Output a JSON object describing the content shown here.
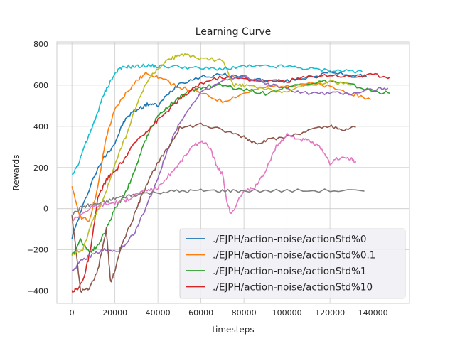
{
  "chart_data": {
    "type": "line",
    "title": "Learning Curve",
    "xlabel": "timesteps",
    "ylabel": "Rewards",
    "xlim": [
      -7000,
      157000
    ],
    "ylim": [
      -460,
      810
    ],
    "xticks": [
      0,
      20000,
      40000,
      60000,
      80000,
      100000,
      120000,
      140000
    ],
    "yticks": [
      -400,
      -200,
      0,
      200,
      400,
      600,
      800
    ],
    "xtick_labels": [
      "0",
      "20000",
      "40000",
      "60000",
      "80000",
      "100000",
      "120000",
      "140000"
    ],
    "ytick_labels": [
      "−400",
      "−200",
      "0",
      "200",
      "400",
      "600",
      "800"
    ],
    "grid": true,
    "legend_position": "lower right",
    "series": [
      {
        "name": "./EJPH/action-noise/actionStd%0",
        "color": "#1f77b4",
        "x": [
          0,
          5000,
          10000,
          15000,
          20000,
          24000,
          28000,
          32000,
          36000,
          40000,
          45000,
          50000,
          60000,
          70000,
          80000,
          90000,
          100000,
          110000,
          120000,
          130000,
          137000
        ],
        "y": [
          -140,
          10,
          150,
          250,
          320,
          420,
          470,
          490,
          510,
          500,
          560,
          610,
          640,
          650,
          640,
          620,
          620,
          640,
          660,
          650,
          640
        ]
      },
      {
        "name": "./EJPH/action-noise/actionStd%0.1",
        "color": "#ff7f0e",
        "x": [
          0,
          4000,
          8000,
          12000,
          16000,
          20000,
          25000,
          30000,
          35000,
          40000,
          50000,
          60000,
          70000,
          80000,
          90000,
          100000,
          110000,
          120000,
          130000,
          139000
        ],
        "y": [
          100,
          -40,
          -60,
          100,
          350,
          480,
          560,
          620,
          660,
          640,
          590,
          560,
          520,
          560,
          590,
          600,
          610,
          590,
          560,
          530
        ]
      },
      {
        "name": "./EJPH/action-noise/actionStd%1",
        "color": "#2ca02c",
        "x": [
          0,
          4000,
          8000,
          12000,
          16000,
          20000,
          24000,
          28000,
          32000,
          36000,
          40000,
          45000,
          50000,
          55000,
          60000,
          70000,
          80000,
          90000,
          100000,
          110000,
          120000,
          130000,
          140000,
          148000
        ],
        "y": [
          -230,
          -150,
          -210,
          -180,
          -100,
          0,
          60,
          150,
          270,
          380,
          450,
          500,
          540,
          570,
          590,
          600,
          580,
          560,
          590,
          610,
          620,
          600,
          570,
          560
        ]
      },
      {
        "name": "./EJPH/action-noise/actionStd%10",
        "color": "#d62728",
        "x": [
          0,
          3000,
          6000,
          9000,
          12000,
          16000,
          20000,
          25000,
          30000,
          35000,
          40000,
          45000,
          50000,
          55000,
          60000,
          70000,
          80000,
          90000,
          100000,
          110000,
          120000,
          130000,
          140000,
          148000
        ],
        "y": [
          -400,
          -390,
          -320,
          -180,
          50,
          140,
          180,
          250,
          330,
          380,
          430,
          480,
          530,
          570,
          610,
          640,
          630,
          620,
          620,
          640,
          650,
          640,
          650,
          640
        ]
      },
      {
        "color": "#9467bd",
        "x": [
          0,
          5000,
          10000,
          15000,
          20000,
          25000,
          30000,
          35000,
          40000,
          45000,
          50000,
          60000,
          70000,
          80000,
          90000,
          100000,
          110000,
          120000,
          130000,
          140000,
          147000
        ],
        "y": [
          -300,
          -250,
          -220,
          -200,
          -210,
          -180,
          -100,
          20,
          150,
          300,
          420,
          560,
          620,
          640,
          610,
          580,
          560,
          560,
          560,
          580,
          585
        ]
      },
      {
        "color": "#8c564b",
        "x": [
          0,
          4000,
          8000,
          12000,
          16000,
          18000,
          20000,
          24000,
          28000,
          32000,
          36000,
          40000,
          45000,
          50000,
          60000,
          70000,
          80000,
          85000,
          90000,
          100000,
          110000,
          120000,
          125000,
          132000
        ],
        "y": [
          -30,
          -400,
          -390,
          -300,
          -100,
          -360,
          -300,
          -150,
          -60,
          50,
          150,
          220,
          300,
          390,
          410,
          380,
          350,
          320,
          330,
          350,
          380,
          400,
          380,
          395
        ]
      },
      {
        "color": "#e377c2",
        "x": [
          0,
          5000,
          10000,
          15000,
          20000,
          25000,
          30000,
          35000,
          40000,
          45000,
          50000,
          55000,
          60000,
          64000,
          68000,
          70000,
          72000,
          74000,
          80000,
          85000,
          90000,
          95000,
          100000,
          105000,
          110000,
          115000,
          120000,
          125000,
          130000,
          132000
        ],
        "y": [
          -60,
          -20,
          10,
          20,
          30,
          40,
          70,
          90,
          100,
          160,
          220,
          290,
          330,
          300,
          190,
          170,
          40,
          -30,
          90,
          100,
          180,
          300,
          360,
          340,
          330,
          300,
          220,
          250,
          240,
          230
        ]
      },
      {
        "color": "#7f7f7f",
        "x": [
          0,
          5000,
          10000,
          15000,
          20000,
          25000,
          30000,
          40000,
          50000,
          60000,
          70000,
          80000,
          100000,
          120000,
          136000
        ],
        "y": [
          -30,
          10,
          20,
          30,
          50,
          60,
          70,
          80,
          85,
          87,
          87,
          87,
          87,
          88,
          85
        ]
      },
      {
        "color": "#bcbd22",
        "x": [
          0,
          5000,
          10000,
          15000,
          20000,
          25000,
          30000,
          35000,
          40000,
          45000,
          50000,
          55000,
          60000,
          70000,
          75000,
          80000,
          90000,
          100000,
          110000,
          120000,
          130000
        ],
        "y": [
          -220,
          -200,
          -50,
          50,
          220,
          350,
          500,
          620,
          680,
          720,
          750,
          740,
          730,
          720,
          600,
          600,
          580,
          570,
          600,
          620,
          600
        ]
      },
      {
        "color": "#17becf",
        "x": [
          0,
          3000,
          6000,
          9000,
          12000,
          15000,
          18000,
          21000,
          25000,
          30000,
          35000,
          40000,
          50000,
          60000,
          70000,
          80000,
          90000,
          100000,
          110000,
          120000,
          130000,
          135000
        ],
        "y": [
          160,
          220,
          310,
          380,
          470,
          560,
          620,
          670,
          690,
          690,
          695,
          690,
          690,
          680,
          680,
          690,
          690,
          690,
          680,
          670,
          670,
          665
        ]
      }
    ]
  }
}
